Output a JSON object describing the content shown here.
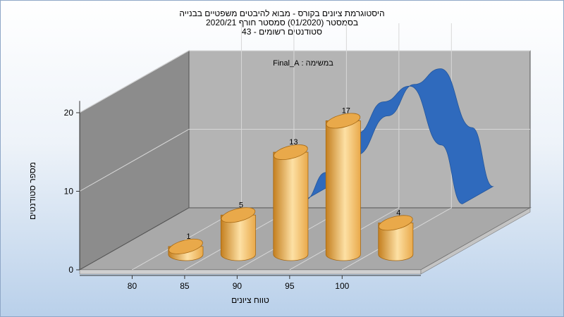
{
  "chart_data": {
    "type": "bar",
    "title_lines": [
      "היסטוגרמת ציונים בקורס - מבוא להיבטים משפטיים בבנייה",
      "בסמסטר  (01/2020)  סמסטר חורף  2020/21",
      "סטודנטים רשומים - 43"
    ],
    "annotation": "במשימה : Final_A",
    "xlabel": "טווח ציונים",
    "ylabel": "מספר סטודנטים",
    "x_ticks": [
      80,
      85,
      90,
      95,
      100
    ],
    "y_ticks": [
      0,
      10,
      20
    ],
    "ylim": [
      0,
      23
    ],
    "categories": [
      "80-85",
      "85-90",
      "90-95",
      "95-100",
      "100-105"
    ],
    "values": [
      1,
      5,
      13,
      17,
      4
    ],
    "curve": [
      {
        "x": 90,
        "y": 4
      },
      {
        "x": 92,
        "y": 7.5
      },
      {
        "x": 95,
        "y": 12.5
      },
      {
        "x": 97.5,
        "y": 16.5
      },
      {
        "x": 100,
        "y": 18.5
      },
      {
        "x": 103,
        "y": 11
      },
      {
        "x": 105,
        "y": 3.5
      }
    ],
    "grid": true,
    "colors": {
      "bar": "#e9a94a",
      "bar_light": "#fde0a4",
      "bar_dark": "#c47f1f",
      "curve": "#2f6abd"
    }
  }
}
